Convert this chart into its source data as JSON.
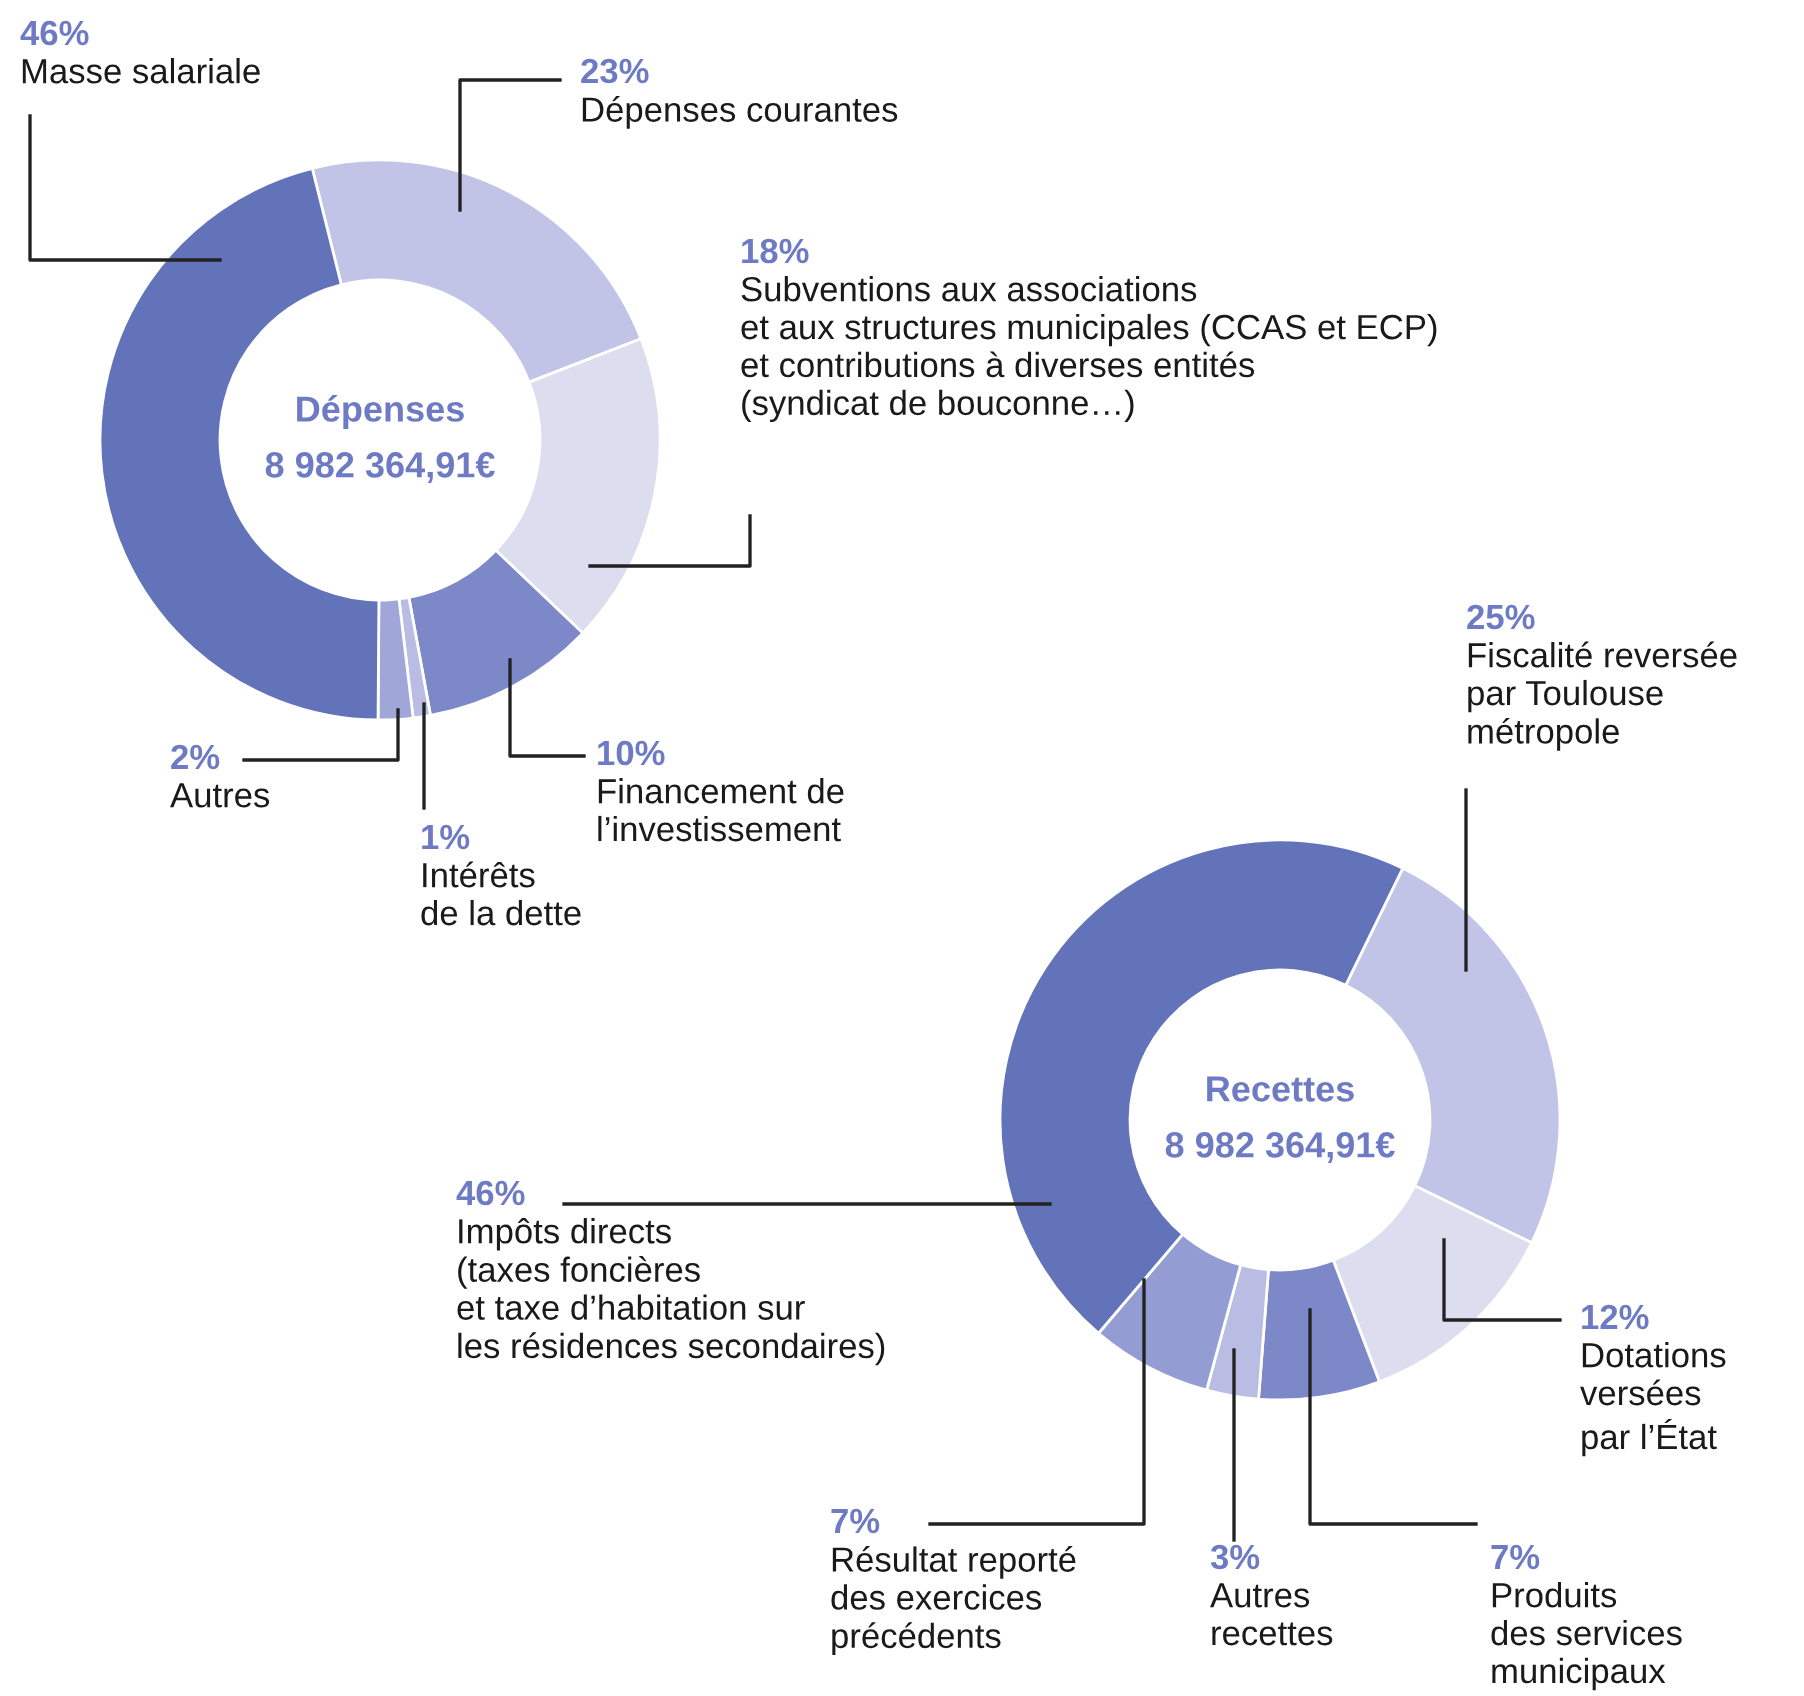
{
  "chart_data": [
    {
      "type": "donut",
      "title": "Dépenses",
      "subtitle": "8 982 364,91€",
      "categories": [
        "Dépenses courantes",
        "Subventions aux associations\net aux structures municipales (CCAS et ECP)\net contributions à diverses entités\n(syndicat de bouconne…)",
        "Financement de\nl’investissement",
        "Intérêts\nde la dette",
        "Autres",
        "Masse salariale"
      ],
      "values": [
        23,
        18,
        10,
        1,
        2,
        46
      ],
      "colors": [
        "#c1c4e6",
        "#dcdef0",
        "#7d88c9",
        "#b9bde4",
        "#a0a7d8",
        "#6373b9"
      ],
      "value_labels": [
        "23%",
        "18%",
        "10%",
        "1%",
        "2%",
        "46%"
      ]
    },
    {
      "type": "donut",
      "title": "Recettes",
      "subtitle": "8 982 364,91€",
      "categories": [
        "Fiscalité reversée\npar Toulouse\nmétropole",
        "Dotations\nversées\npar l’État",
        "Produits\ndes services\nmunicipaux",
        "Autres\nrecettes",
        "Résultat reporté\ndes exercices\nprécédents",
        "Impôts directs\n(taxes foncières\net taxe d’habitation sur\nles résidences secondaires)"
      ],
      "values": [
        25,
        12,
        7,
        3,
        7,
        46
      ],
      "colors": [
        "#c1c4e6",
        "#dcdef0",
        "#7d88c9",
        "#b9bde4",
        "#949dd3",
        "#6373b9"
      ],
      "value_labels": [
        "25%",
        "12%",
        "7%",
        "3%",
        "7%",
        "46%"
      ]
    }
  ]
}
